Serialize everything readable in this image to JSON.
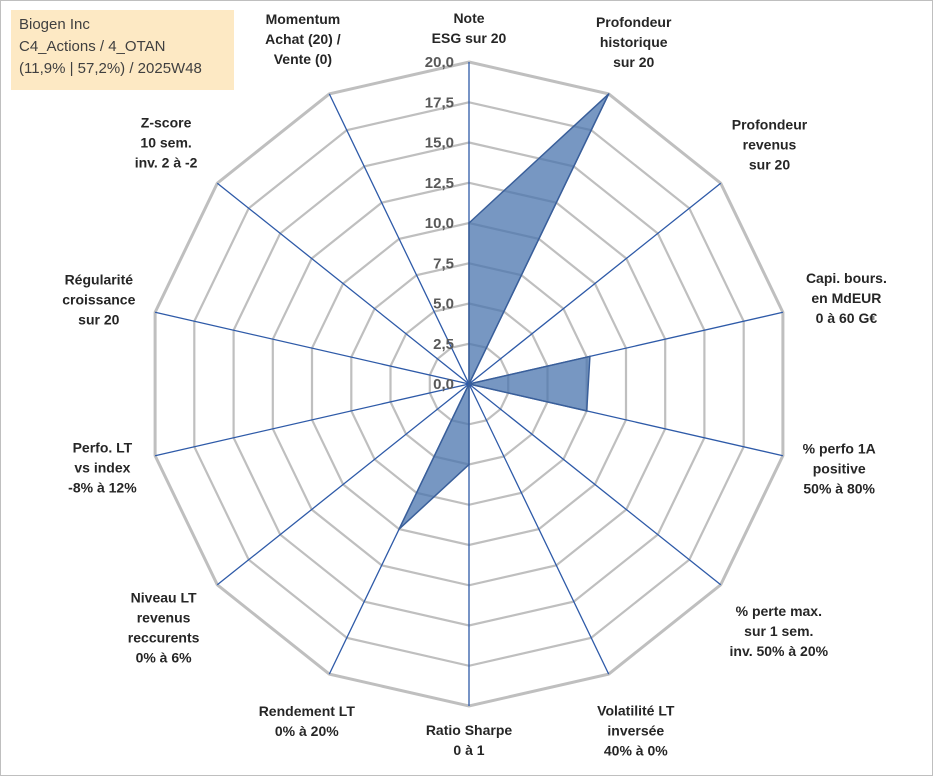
{
  "info_box": {
    "company": "Biogen Inc",
    "line2": "C4_Actions / 4_OTAN",
    "line3": "(11,9% | 57,2%) / 2025W48"
  },
  "colors": {
    "grid": "#bfbfbf",
    "spoke": "#2e5aa8",
    "fill": "#4a74ad",
    "stroke": "#3a5f9a"
  },
  "chart_data": {
    "type": "radar",
    "title": "",
    "range": [
      0,
      20
    ],
    "ticks": [
      "0,0",
      "2,5",
      "5,0",
      "7,5",
      "10,0",
      "12,5",
      "15,0",
      "17,5",
      "20,0"
    ],
    "axes": [
      {
        "label": [
          "Note",
          "ESG sur 20"
        ],
        "value": 10.0
      },
      {
        "label": [
          "Profondeur",
          "historique",
          "sur 20"
        ],
        "value": 20.0
      },
      {
        "label": [
          "Profondeur",
          "revenus",
          "sur 20"
        ],
        "value": 0.0
      },
      {
        "label": [
          "Capi. bours.",
          "en MdEUR",
          "0 à 60 G€"
        ],
        "value": 7.7
      },
      {
        "label": [
          "% perfo 1A",
          "positive",
          "50% à 80%"
        ],
        "value": 7.5
      },
      {
        "label": [
          "% perte max.",
          "sur 1 sem.",
          "inv. 50% à 20%"
        ],
        "value": 0.0
      },
      {
        "label": [
          "Volatilité LT",
          "inversée",
          "40% à 0%"
        ],
        "value": 0.0
      },
      {
        "label": [
          "Ratio Sharpe",
          "0 à 1"
        ],
        "value": 5.0
      },
      {
        "label": [
          "Rendement LT",
          "0% à 20%"
        ],
        "value": 10.0
      },
      {
        "label": [
          "Niveau LT",
          "revenus",
          "reccurents",
          "0% à 6%"
        ],
        "value": 0.0
      },
      {
        "label": [
          "Perfo. LT",
          "vs index",
          "-8% à 12%"
        ],
        "value": 0.0
      },
      {
        "label": [
          "Régularité",
          "croissance",
          "sur 20"
        ],
        "value": 0.0
      },
      {
        "label": [
          "Z-score",
          "10 sem.",
          "inv. 2 à -2"
        ],
        "value": 0.0
      },
      {
        "label": [
          "Momentum",
          "Achat (20) /",
          "Vente (0)"
        ],
        "value": 0.0
      }
    ],
    "series": [
      {
        "name": "Biogen Inc",
        "values": [
          10.0,
          20.0,
          0.0,
          7.7,
          7.5,
          0.0,
          0.0,
          5.0,
          10.0,
          0.0,
          0.0,
          0.0,
          0.0,
          0.0
        ]
      }
    ]
  }
}
